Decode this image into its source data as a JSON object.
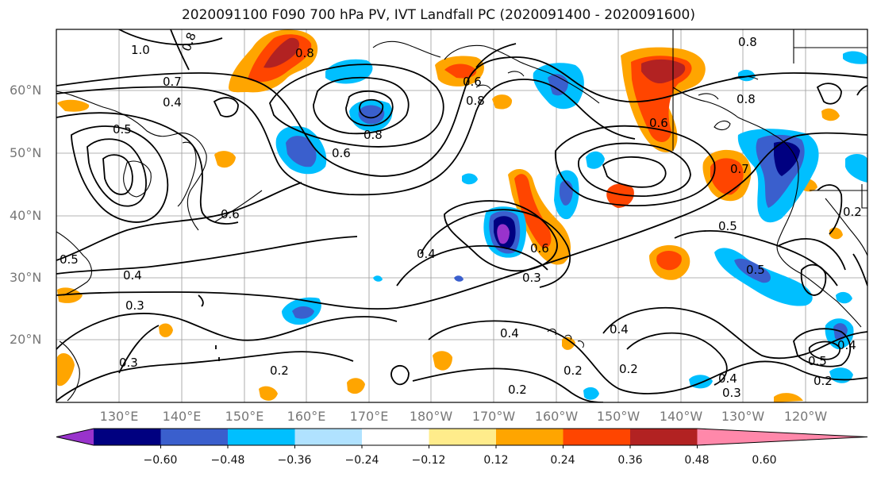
{
  "title": "2020091100 F090 700 hPa PV, IVT Landfall PC (2020091400 - 2020091600)",
  "lat_labels": [
    "60°N",
    "50°N",
    "40°N",
    "30°N",
    "20°N"
  ],
  "lon_labels": [
    "130°E",
    "140°E",
    "150°E",
    "160°E",
    "170°E",
    "180°W",
    "170°W",
    "160°W",
    "150°W",
    "140°W",
    "130°W",
    "120°W"
  ],
  "colorbar": {
    "ticks": [
      "−0.60",
      "−0.48",
      "−0.36",
      "−0.24",
      "−0.12",
      "0.12",
      "0.24",
      "0.36",
      "0.48",
      "0.60"
    ],
    "colors": [
      "#9933cc",
      "#000080",
      "#3a5fcd",
      "#00bfff",
      "#b0e2ff",
      "#ffffff",
      "#ffec8b",
      "#ffa500",
      "#ff4500",
      "#b22222",
      "#ff88aa"
    ]
  },
  "contour_labels": [
    "1.0",
    "0.8",
    "0.7",
    "0.4",
    "0.5",
    "0.8",
    "0.6",
    "0.8",
    "0.6",
    "0.8",
    "0.8",
    "0.6",
    "0.7",
    "0.8",
    "0.6",
    "0.4",
    "0.6",
    "0.5",
    "0.5",
    "0.4",
    "0.3",
    "0.5",
    "0.3",
    "0.3",
    "0.2",
    "0.4",
    "0.4",
    "0.2",
    "0.2",
    "0.2",
    "0.4",
    "0.3",
    "0.5",
    "0.2",
    "0.4",
    "0.2"
  ]
}
